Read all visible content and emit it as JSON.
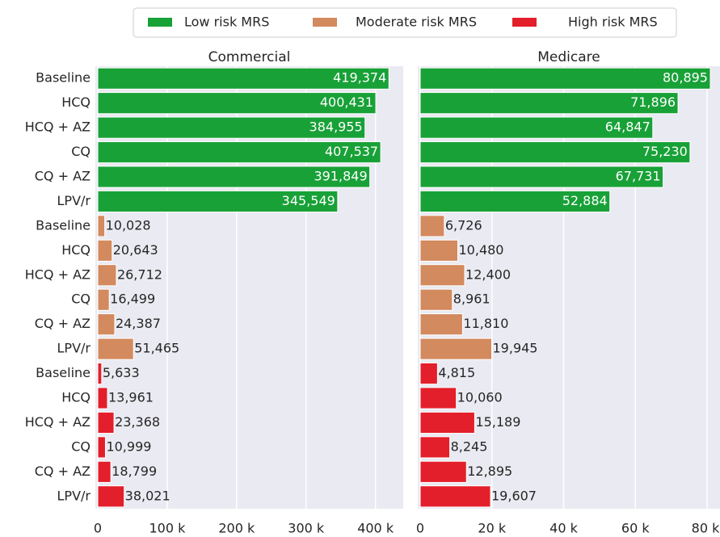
{
  "chart_data": [
    {
      "type": "barh",
      "title": "Commercial",
      "categories": [
        "Baseline",
        "HCQ",
        "HCQ + AZ",
        "CQ",
        "CQ + AZ",
        "LPV/r"
      ],
      "xlim": [
        0,
        440000
      ],
      "xticks": [
        0,
        {
          "value": 100000,
          "label": "100 k"
        },
        {
          "value": 200000,
          "label": "200 k"
        },
        {
          "value": 300000,
          "label": "300 k"
        },
        {
          "value": 400000,
          "label": "400 k"
        }
      ],
      "grid": true,
      "series": [
        {
          "name": "Low risk MRS",
          "color": "#18a137",
          "values": [
            419374,
            400431,
            384955,
            407537,
            391849,
            345549
          ],
          "value_labels": [
            "419,374",
            "400,431",
            "384,955",
            "407,537",
            "391,849",
            "345,549"
          ]
        },
        {
          "name": "Moderate risk MRS",
          "color": "#d38a5e",
          "values": [
            10028,
            20643,
            26712,
            16499,
            24387,
            51465
          ],
          "value_labels": [
            "10,028",
            "20,643",
            "26,712",
            "16,499",
            "24,387",
            "51,465"
          ]
        },
        {
          "name": "High risk MRS",
          "color": "#e31f2b",
          "values": [
            5633,
            13961,
            23368,
            10999,
            18799,
            38021
          ],
          "value_labels": [
            "5,633",
            "13,961",
            "23,368",
            "10,999",
            "18,799",
            "38,021"
          ]
        }
      ]
    },
    {
      "type": "barh",
      "title": "Medicare",
      "xlim": [
        0,
        83600
      ],
      "xticks": [
        0,
        {
          "value": 20000,
          "label": "20 k"
        },
        {
          "value": 40000,
          "label": "40 k"
        },
        {
          "value": 60000,
          "label": "60 k"
        },
        {
          "value": 80000,
          "label": "80 k"
        }
      ],
      "grid": true,
      "series": [
        {
          "color": "#18a137",
          "values": [
            80895,
            71896,
            64847,
            75230,
            67731,
            52884
          ],
          "value_labels": [
            "80,895",
            "71,896",
            "64,847",
            "75,230",
            "67,731",
            "52,884"
          ]
        },
        {
          "color": "#d38a5e",
          "values": [
            6726,
            10480,
            12400,
            8961,
            11810,
            19945
          ],
          "value_labels": [
            "6,726",
            "10,480",
            "12,400",
            "8,961",
            "11,810",
            "19,945"
          ]
        },
        {
          "color": "#e31f2b",
          "values": [
            4815,
            10060,
            15189,
            8245,
            12895,
            19607
          ],
          "value_labels": [
            "4,815",
            "10,060",
            "15,189",
            "8,245",
            "12,895",
            "19,607"
          ]
        }
      ]
    }
  ]
}
